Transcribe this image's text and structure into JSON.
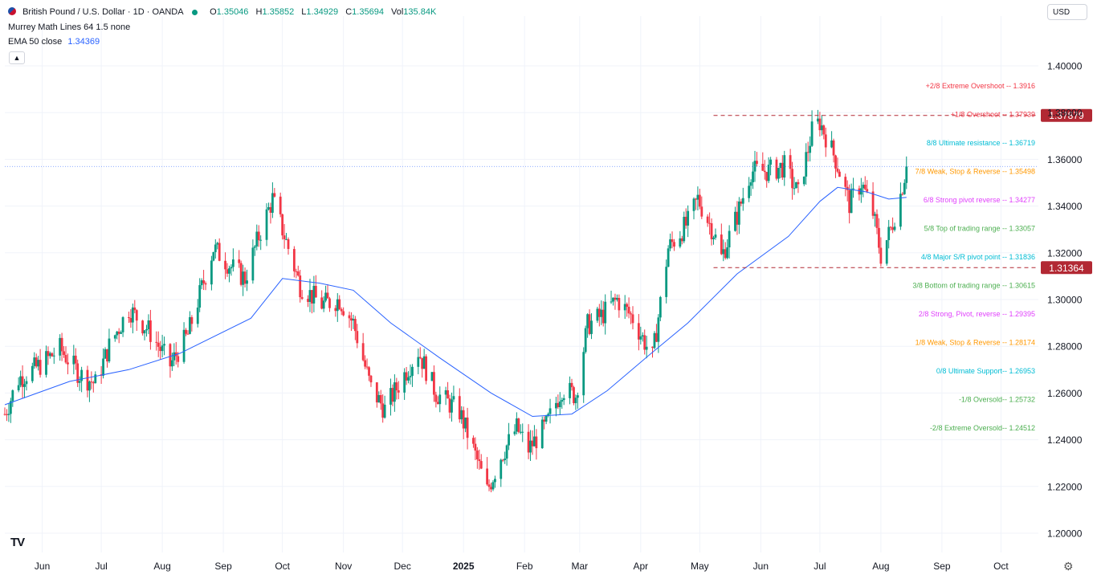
{
  "header": {
    "symbol": "British Pound / U.S. Dollar · 1D · OANDA",
    "o_key": "O",
    "o_val": "1.35046",
    "h_key": "H",
    "h_val": "1.35852",
    "l_key": "L",
    "l_val": "1.34929",
    "c_key": "C",
    "c_val": "1.35694",
    "vol_key": "Vol",
    "vol_val": "135.84K",
    "indicator1": "Murrey Math Lines 64 1.5 none",
    "indicator2_label": "EMA 50 close",
    "indicator2_value": "1.34369"
  },
  "currency": "USD",
  "collapse_icon": "chevron-up-icon",
  "logo": "TV",
  "settings_icon": "gear-icon",
  "colors": {
    "up": "#089981",
    "down": "#f23645",
    "ema": "#2962ff",
    "badge": "#b22833",
    "grid": "#f0f3fa"
  },
  "chart_data": {
    "type": "candlestick",
    "ylim": [
      1.19,
      1.415
    ],
    "y_ticks": [
      "1.20000",
      "1.22000",
      "1.24000",
      "1.26000",
      "1.28000",
      "1.30000",
      "1.32000",
      "1.34000",
      "1.36000",
      "1.38000",
      "1.40000"
    ],
    "x_ticks": [
      {
        "label": "Jun",
        "date": "2024-06-01"
      },
      {
        "label": "Jul",
        "date": "2024-07-01"
      },
      {
        "label": "Aug",
        "date": "2024-08-01"
      },
      {
        "label": "Sep",
        "date": "2024-09-01"
      },
      {
        "label": "Oct",
        "date": "2024-10-01"
      },
      {
        "label": "Nov",
        "date": "2024-11-01"
      },
      {
        "label": "Dec",
        "date": "2024-12-01"
      },
      {
        "label": "2025",
        "date": "2025-01-01",
        "bold": true
      },
      {
        "label": "Feb",
        "date": "2025-02-01"
      },
      {
        "label": "Mar",
        "date": "2025-03-01"
      },
      {
        "label": "Apr",
        "date": "2025-04-01"
      },
      {
        "label": "May",
        "date": "2025-05-01"
      },
      {
        "label": "Jun",
        "date": "2025-06-01"
      },
      {
        "label": "Jul",
        "date": "2025-07-01"
      },
      {
        "label": "Aug",
        "date": "2025-08-01"
      },
      {
        "label": "Sep",
        "date": "2025-09-01"
      },
      {
        "label": "Oct",
        "date": "2025-10-01"
      }
    ],
    "date_range": [
      "2024-05-13",
      "2025-10-20"
    ],
    "price_path": [
      [
        "2024-05-13",
        1.251
      ],
      [
        "2024-05-20",
        1.266
      ],
      [
        "2024-05-31",
        1.272
      ],
      [
        "2024-06-10",
        1.279
      ],
      [
        "2024-06-20",
        1.268
      ],
      [
        "2024-06-28",
        1.264
      ],
      [
        "2024-07-05",
        1.28
      ],
      [
        "2024-07-15",
        1.296
      ],
      [
        "2024-07-25",
        1.287
      ],
      [
        "2024-08-05",
        1.272
      ],
      [
        "2024-08-14",
        1.285
      ],
      [
        "2024-08-27",
        1.322
      ],
      [
        "2024-09-05",
        1.314
      ],
      [
        "2024-09-12",
        1.309
      ],
      [
        "2024-09-19",
        1.327
      ],
      [
        "2024-09-26",
        1.343
      ],
      [
        "2024-10-01",
        1.33
      ],
      [
        "2024-10-10",
        1.306
      ],
      [
        "2024-10-21",
        1.298
      ],
      [
        "2024-10-30",
        1.3
      ],
      [
        "2024-11-06",
        1.29
      ],
      [
        "2024-11-15",
        1.262
      ],
      [
        "2024-11-22",
        1.253
      ],
      [
        "2024-12-02",
        1.268
      ],
      [
        "2024-12-09",
        1.278
      ],
      [
        "2024-12-18",
        1.26
      ],
      [
        "2024-12-30",
        1.252
      ],
      [
        "2025-01-08",
        1.231
      ],
      [
        "2025-01-13",
        1.218
      ],
      [
        "2025-01-20",
        1.233
      ],
      [
        "2025-01-28",
        1.245
      ],
      [
        "2025-02-03",
        1.236
      ],
      [
        "2025-02-12",
        1.246
      ],
      [
        "2025-02-20",
        1.262
      ],
      [
        "2025-02-27",
        1.259
      ],
      [
        "2025-03-05",
        1.289
      ],
      [
        "2025-03-12",
        1.293
      ],
      [
        "2025-03-20",
        1.3
      ],
      [
        "2025-03-28",
        1.292
      ],
      [
        "2025-04-07",
        1.275
      ],
      [
        "2025-04-15",
        1.322
      ],
      [
        "2025-04-25",
        1.333
      ],
      [
        "2025-04-30",
        1.343
      ],
      [
        "2025-05-08",
        1.329
      ],
      [
        "2025-05-12",
        1.318
      ],
      [
        "2025-05-20",
        1.336
      ],
      [
        "2025-05-27",
        1.355
      ],
      [
        "2025-06-05",
        1.355
      ],
      [
        "2025-06-13",
        1.357
      ],
      [
        "2025-06-20",
        1.345
      ],
      [
        "2025-06-27",
        1.372
      ],
      [
        "2025-07-01",
        1.376
      ],
      [
        "2025-07-09",
        1.36
      ],
      [
        "2025-07-16",
        1.341
      ],
      [
        "2025-07-22",
        1.35
      ],
      [
        "2025-07-28",
        1.337
      ],
      [
        "2025-08-01",
        1.319
      ],
      [
        "2025-08-06",
        1.33
      ],
      [
        "2025-08-11",
        1.345
      ],
      [
        "2025-08-14",
        1.357
      ]
    ],
    "ema_path": [
      [
        "2024-05-13",
        1.255
      ],
      [
        "2024-06-15",
        1.265
      ],
      [
        "2024-07-15",
        1.27
      ],
      [
        "2024-08-10",
        1.277
      ],
      [
        "2024-09-15",
        1.292
      ],
      [
        "2024-10-01",
        1.309
      ],
      [
        "2024-10-20",
        1.307
      ],
      [
        "2024-11-06",
        1.304
      ],
      [
        "2024-11-25",
        1.29
      ],
      [
        "2024-12-20",
        1.275
      ],
      [
        "2025-01-15",
        1.26
      ],
      [
        "2025-02-05",
        1.25
      ],
      [
        "2025-02-25",
        1.251
      ],
      [
        "2025-03-15",
        1.261
      ],
      [
        "2025-04-05",
        1.276
      ],
      [
        "2025-04-25",
        1.29
      ],
      [
        "2025-05-20",
        1.311
      ],
      [
        "2025-06-15",
        1.327
      ],
      [
        "2025-07-01",
        1.342
      ],
      [
        "2025-07-10",
        1.348
      ],
      [
        "2025-07-25",
        1.346
      ],
      [
        "2025-08-05",
        1.343
      ],
      [
        "2025-08-14",
        1.3437
      ]
    ],
    "last_close": 1.35694,
    "murrey_lines": [
      {
        "label": "+2/8 Extreme Overshoot --",
        "value": "1.3916",
        "color": "#f23645",
        "y": 1.3916
      },
      {
        "label": "+1/8 Overshoot --",
        "value": "1.37939",
        "color": "#f23645",
        "y": 1.37939
      },
      {
        "label": "8/8 Ultimate resistance --",
        "value": "1.36719",
        "color": "#00bcd4",
        "y": 1.36719
      },
      {
        "label": "7/8 Weak, Stop & Reverse --",
        "value": "1.35498",
        "color": "#ff9800",
        "y": 1.35498
      },
      {
        "label": "6/8 Strong pivot reverse --",
        "value": "1.34277",
        "color": "#e040fb",
        "y": 1.34277
      },
      {
        "label": "5/8 Top of trading range --",
        "value": "1.33057",
        "color": "#4caf50",
        "y": 1.33057
      },
      {
        "label": "4/8 Major S/R pivot point --",
        "value": "1.31836",
        "color": "#00bcd4",
        "y": 1.31836
      },
      {
        "label": "3/8 Bottom of trading range --",
        "value": "1.30615",
        "color": "#4caf50",
        "y": 1.30615
      },
      {
        "label": "2/8 Strong, Pivot, reverse --",
        "value": "1.29395",
        "color": "#e040fb",
        "y": 1.29395
      },
      {
        "label": "1/8 Weak, Stop & Reverse --",
        "value": "1.28174",
        "color": "#ff9800",
        "y": 1.28174
      },
      {
        "label": "0/8 Ultimate Support--",
        "value": "1.26953",
        "color": "#00bcd4",
        "y": 1.26953
      },
      {
        "label": "-1/8 Oversold--",
        "value": "1.25732",
        "color": "#4caf50",
        "y": 1.25732
      },
      {
        "label": "-2/8 Extreme Oversold--",
        "value": "1.24512",
        "color": "#4caf50",
        "y": 1.24512
      }
    ],
    "horizontal_levels": [
      {
        "value": 1.37879,
        "badge": "1.37879",
        "start_date": "2025-05-08"
      },
      {
        "value": 1.31364,
        "badge": "1.31364",
        "start_date": "2025-05-08"
      }
    ]
  }
}
